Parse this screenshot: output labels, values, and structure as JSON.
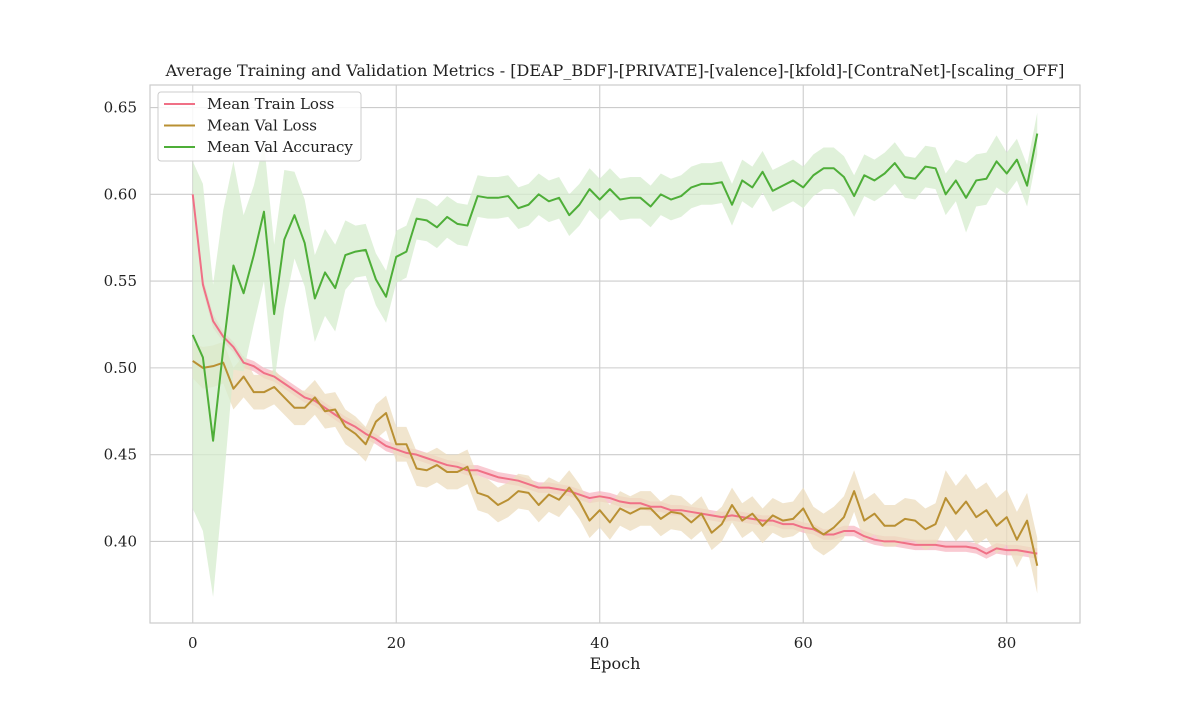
{
  "chart_data": {
    "type": "line",
    "title": "Average Training and Validation Metrics - [DEAP_BDF]-[PRIVATE]-[valence]-[kfold]-[ContraNet]-[scaling_OFF]",
    "xlabel": "Epoch",
    "ylabel": "",
    "xlim": [
      -4.2,
      87.2
    ],
    "ylim": [
      0.353,
      0.663
    ],
    "xticks": [
      0,
      20,
      40,
      60,
      80
    ],
    "yticks": [
      0.4,
      0.45,
      0.5,
      0.55,
      0.6,
      0.65
    ],
    "grid": true,
    "legend_position": "upper-left",
    "series": [
      {
        "name": "Mean Train Loss",
        "color": "#f07086",
        "fill_color": "#f7b8c3",
        "values": [
          0.6,
          0.548,
          0.527,
          0.518,
          0.512,
          0.503,
          0.501,
          0.497,
          0.495,
          0.491,
          0.487,
          0.483,
          0.481,
          0.477,
          0.473,
          0.469,
          0.466,
          0.462,
          0.459,
          0.455,
          0.453,
          0.451,
          0.45,
          0.448,
          0.446,
          0.444,
          0.443,
          0.441,
          0.441,
          0.439,
          0.437,
          0.436,
          0.435,
          0.433,
          0.431,
          0.431,
          0.43,
          0.429,
          0.427,
          0.425,
          0.426,
          0.425,
          0.423,
          0.422,
          0.422,
          0.42,
          0.42,
          0.418,
          0.418,
          0.417,
          0.416,
          0.415,
          0.414,
          0.415,
          0.414,
          0.413,
          0.412,
          0.412,
          0.41,
          0.41,
          0.408,
          0.407,
          0.404,
          0.404,
          0.406,
          0.406,
          0.403,
          0.401,
          0.4,
          0.4,
          0.399,
          0.398,
          0.398,
          0.398,
          0.397,
          0.397,
          0.397,
          0.396,
          0.393,
          0.396,
          0.395,
          0.395,
          0.394,
          0.393
        ],
        "band": [
          0.003,
          0.004,
          0.004,
          0.003,
          0.003,
          0.003,
          0.003,
          0.003,
          0.003,
          0.003,
          0.003,
          0.003,
          0.003,
          0.003,
          0.003,
          0.003,
          0.003,
          0.003,
          0.003,
          0.003,
          0.003,
          0.003,
          0.003,
          0.003,
          0.003,
          0.003,
          0.003,
          0.003,
          0.003,
          0.003,
          0.003,
          0.003,
          0.003,
          0.003,
          0.003,
          0.003,
          0.003,
          0.003,
          0.003,
          0.003,
          0.003,
          0.003,
          0.003,
          0.003,
          0.003,
          0.003,
          0.003,
          0.003,
          0.003,
          0.003,
          0.003,
          0.003,
          0.003,
          0.003,
          0.003,
          0.003,
          0.003,
          0.003,
          0.003,
          0.003,
          0.003,
          0.003,
          0.003,
          0.003,
          0.003,
          0.003,
          0.003,
          0.003,
          0.003,
          0.003,
          0.003,
          0.003,
          0.003,
          0.003,
          0.003,
          0.003,
          0.003,
          0.003,
          0.003,
          0.003,
          0.003,
          0.003,
          0.003,
          0.003
        ]
      },
      {
        "name": "Mean Val Loss",
        "color": "#b99033",
        "fill_color": "#ecdcbd",
        "values": [
          0.504,
          0.5,
          0.501,
          0.503,
          0.488,
          0.495,
          0.486,
          0.486,
          0.489,
          0.483,
          0.477,
          0.477,
          0.483,
          0.475,
          0.476,
          0.466,
          0.462,
          0.456,
          0.469,
          0.474,
          0.456,
          0.456,
          0.442,
          0.441,
          0.444,
          0.44,
          0.44,
          0.443,
          0.428,
          0.426,
          0.421,
          0.424,
          0.429,
          0.428,
          0.421,
          0.427,
          0.424,
          0.431,
          0.423,
          0.412,
          0.418,
          0.411,
          0.419,
          0.416,
          0.419,
          0.419,
          0.413,
          0.417,
          0.416,
          0.411,
          0.416,
          0.405,
          0.41,
          0.421,
          0.412,
          0.416,
          0.409,
          0.415,
          0.412,
          0.413,
          0.419,
          0.408,
          0.404,
          0.408,
          0.414,
          0.429,
          0.412,
          0.416,
          0.409,
          0.409,
          0.413,
          0.412,
          0.407,
          0.41,
          0.425,
          0.416,
          0.423,
          0.414,
          0.418,
          0.409,
          0.414,
          0.401,
          0.412,
          0.386
        ],
        "band": [
          0.01,
          0.012,
          0.012,
          0.012,
          0.012,
          0.012,
          0.01,
          0.01,
          0.01,
          0.01,
          0.01,
          0.01,
          0.01,
          0.01,
          0.01,
          0.01,
          0.01,
          0.01,
          0.01,
          0.01,
          0.01,
          0.01,
          0.01,
          0.01,
          0.01,
          0.01,
          0.01,
          0.01,
          0.01,
          0.01,
          0.01,
          0.01,
          0.01,
          0.01,
          0.01,
          0.01,
          0.01,
          0.01,
          0.01,
          0.01,
          0.01,
          0.01,
          0.01,
          0.01,
          0.01,
          0.01,
          0.01,
          0.01,
          0.01,
          0.01,
          0.01,
          0.01,
          0.01,
          0.01,
          0.01,
          0.01,
          0.01,
          0.01,
          0.01,
          0.01,
          0.012,
          0.012,
          0.012,
          0.012,
          0.012,
          0.012,
          0.012,
          0.012,
          0.012,
          0.012,
          0.012,
          0.012,
          0.012,
          0.012,
          0.016,
          0.016,
          0.016,
          0.016,
          0.016,
          0.016,
          0.016,
          0.016,
          0.016,
          0.016
        ]
      },
      {
        "name": "Mean Val Accuracy",
        "color": "#4eae38",
        "fill_color": "#d5ecce",
        "values": [
          0.519,
          0.506,
          0.458,
          0.511,
          0.559,
          0.543,
          0.565,
          0.59,
          0.531,
          0.574,
          0.588,
          0.572,
          0.54,
          0.555,
          0.546,
          0.565,
          0.567,
          0.568,
          0.551,
          0.541,
          0.564,
          0.567,
          0.586,
          0.585,
          0.581,
          0.587,
          0.583,
          0.582,
          0.599,
          0.598,
          0.598,
          0.599,
          0.592,
          0.594,
          0.6,
          0.596,
          0.598,
          0.588,
          0.594,
          0.603,
          0.597,
          0.603,
          0.597,
          0.598,
          0.598,
          0.593,
          0.6,
          0.597,
          0.599,
          0.604,
          0.606,
          0.606,
          0.607,
          0.594,
          0.608,
          0.604,
          0.613,
          0.602,
          0.605,
          0.608,
          0.604,
          0.611,
          0.615,
          0.615,
          0.61,
          0.599,
          0.611,
          0.608,
          0.612,
          0.618,
          0.61,
          0.609,
          0.616,
          0.615,
          0.6,
          0.608,
          0.598,
          0.608,
          0.609,
          0.619,
          0.612,
          0.62,
          0.605,
          0.635
        ],
        "band": [
          0.1,
          0.1,
          0.09,
          0.08,
          0.06,
          0.045,
          0.04,
          0.04,
          0.04,
          0.04,
          0.025,
          0.025,
          0.025,
          0.025,
          0.025,
          0.02,
          0.015,
          0.015,
          0.015,
          0.015,
          0.015,
          0.015,
          0.012,
          0.012,
          0.012,
          0.012,
          0.012,
          0.012,
          0.012,
          0.012,
          0.012,
          0.012,
          0.012,
          0.012,
          0.012,
          0.012,
          0.012,
          0.012,
          0.012,
          0.012,
          0.012,
          0.012,
          0.012,
          0.012,
          0.012,
          0.012,
          0.012,
          0.012,
          0.012,
          0.012,
          0.012,
          0.012,
          0.012,
          0.012,
          0.012,
          0.012,
          0.012,
          0.012,
          0.012,
          0.012,
          0.012,
          0.012,
          0.012,
          0.012,
          0.012,
          0.012,
          0.012,
          0.012,
          0.012,
          0.012,
          0.012,
          0.012,
          0.012,
          0.012,
          0.012,
          0.012,
          0.02,
          0.015,
          0.015,
          0.015,
          0.012,
          0.012,
          0.012,
          0.012
        ]
      }
    ]
  }
}
